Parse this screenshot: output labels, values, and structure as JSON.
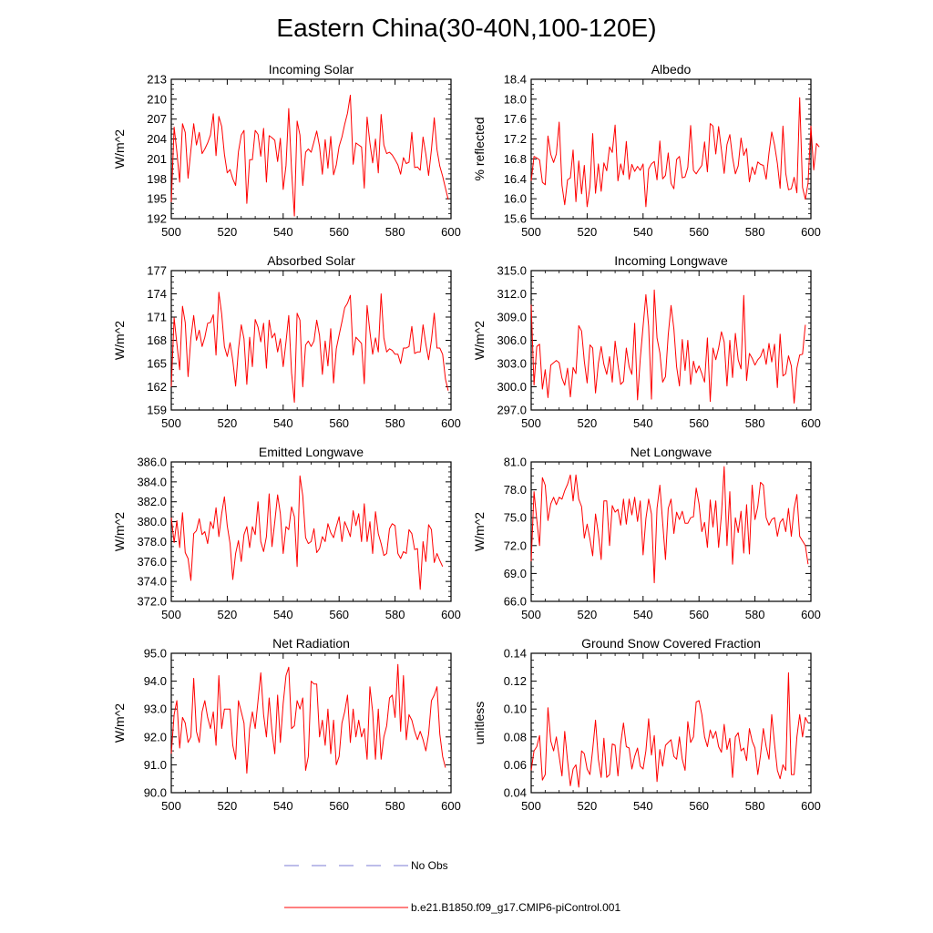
{
  "title": "Eastern China(30-40N,100-120E)",
  "legend": [
    {
      "label": "No Obs",
      "color": "#7b7bd6",
      "dash": true
    },
    {
      "label": "b.e21.B1850.f09_g17.CMIP6-piControl.001",
      "color": "#ff0000",
      "dash": false
    }
  ],
  "chart_data": [
    {
      "type": "line",
      "title": "Incoming Solar",
      "ylabel": "W/m^2",
      "xlim": [
        500,
        600
      ],
      "xticks": [
        500,
        520,
        540,
        560,
        580,
        600
      ],
      "ylim": [
        192,
        213
      ],
      "yticks": [
        "192",
        "195",
        "198",
        "201",
        "204",
        "207",
        "210",
        "213"
      ],
      "color": "#ff0000",
      "x_start": 500,
      "values": [
        194.5,
        205.8,
        202.1,
        197.5,
        206.3,
        205.0,
        198.1,
        202.3,
        206.3,
        203.1,
        205.0,
        201.8,
        202.5,
        203.4,
        204.6,
        207.8,
        201.5,
        207.4,
        205.9,
        201.7,
        198.9,
        199.4,
        198.0,
        197.0,
        202.1,
        204.6,
        205.3,
        194.3,
        200.9,
        200.9,
        205.3,
        204.7,
        201.4,
        205.6,
        197.5,
        204.5,
        204.2,
        203.8,
        200.6,
        204.1,
        196.4,
        200.0,
        208.6,
        199.3,
        192.4,
        206.7,
        204.6,
        197.0,
        202.0,
        202.5,
        202.0,
        203.6,
        205.2,
        202.9,
        198.7,
        203.9,
        199.6,
        204.4,
        198.6,
        200.1,
        202.9,
        204.3,
        206.2,
        207.9,
        210.6,
        200.2,
        203.4,
        203.1,
        202.8,
        196.6,
        207.3,
        203.4,
        200.4,
        204.0,
        198.9,
        207.7,
        203.1,
        201.8,
        202.0,
        201.6,
        200.9,
        200.1,
        198.7,
        201.2,
        200.3,
        200.5,
        205.0,
        199.7,
        199.8,
        199.3,
        204.3,
        201.7,
        198.5,
        202.4,
        207.2,
        202.4,
        199.9,
        198.4,
        196.6,
        194.9
      ]
    },
    {
      "type": "line",
      "title": "Albedo",
      "ylabel": "% reflected",
      "xlim": [
        500,
        600
      ],
      "xticks": [
        500,
        520,
        540,
        560,
        580,
        600
      ],
      "ylim": [
        15.6,
        18.4
      ],
      "yticks": [
        "15.6",
        "16.0",
        "16.4",
        "16.8",
        "17.2",
        "17.6",
        "18.0",
        "18.4"
      ],
      "color": "#ff0000",
      "x_start": 500,
      "values": [
        16.36,
        16.85,
        16.82,
        16.78,
        16.33,
        16.28,
        17.26,
        16.89,
        16.73,
        16.9,
        17.54,
        16.27,
        15.88,
        16.38,
        16.42,
        16.98,
        15.94,
        16.76,
        16.1,
        16.67,
        15.84,
        16.24,
        17.31,
        16.11,
        16.7,
        16.15,
        16.72,
        16.56,
        17.04,
        16.93,
        17.48,
        16.36,
        16.7,
        16.48,
        17.15,
        16.39,
        16.69,
        16.55,
        16.65,
        16.57,
        16.7,
        15.84,
        16.6,
        16.7,
        16.75,
        16.38,
        17.16,
        16.4,
        16.47,
        16.92,
        16.31,
        16.2,
        16.79,
        16.85,
        16.42,
        16.44,
        16.63,
        17.47,
        16.57,
        16.5,
        16.59,
        16.67,
        17.14,
        16.54,
        17.51,
        17.46,
        16.9,
        17.45,
        16.98,
        16.51,
        17.09,
        17.29,
        16.83,
        16.5,
        16.66,
        17.22,
        16.87,
        17.01,
        16.34,
        16.64,
        16.49,
        16.74,
        16.69,
        16.67,
        16.39,
        16.92,
        17.34,
        17.08,
        16.71,
        16.21,
        17.46,
        16.51,
        16.18,
        16.2,
        16.43,
        16.12,
        18.03,
        16.23,
        15.99,
        16.32,
        17.46,
        16.58,
        17.11,
        17.04
      ]
    },
    {
      "type": "line",
      "title": "Absorbed Solar",
      "ylabel": "W/m^2",
      "xlim": [
        500,
        600
      ],
      "xticks": [
        500,
        520,
        540,
        560,
        580,
        600
      ],
      "ylim": [
        159,
        177
      ],
      "yticks": [
        "159",
        "162",
        "165",
        "168",
        "171",
        "174",
        "177"
      ],
      "color": "#ff0000",
      "x_start": 500,
      "values": [
        162.0,
        170.9,
        167.6,
        164.2,
        172.4,
        170.3,
        163.3,
        168.3,
        171.2,
        168.0,
        169.3,
        167.2,
        168.4,
        170.2,
        170.3,
        171.3,
        166.1,
        174.2,
        171.4,
        167.2,
        165.9,
        167.7,
        165.4,
        162.1,
        166.8,
        170.0,
        168.2,
        162.3,
        168.4,
        164.6,
        170.7,
        169.7,
        167.8,
        170.2,
        164.4,
        170.6,
        168.3,
        168.9,
        166.5,
        168.2,
        164.6,
        167.8,
        171.2,
        163.8,
        160.0,
        171.5,
        170.6,
        162.0,
        167.4,
        167.9,
        167.2,
        167.9,
        170.6,
        168.6,
        163.6,
        167.9,
        164.7,
        169.5,
        162.5,
        166.9,
        168.7,
        170.4,
        172.2,
        172.8,
        173.8,
        166.1,
        168.4,
        168.0,
        167.6,
        162.4,
        172.5,
        169.1,
        166.2,
        168.3,
        166.5,
        174.0,
        168.3,
        166.5,
        166.9,
        166.7,
        166.2,
        166.2,
        165.0,
        167.0,
        167.0,
        167.2,
        169.8,
        166.3,
        166.5,
        166.5,
        170.0,
        167.5,
        165.5,
        168.0,
        171.5,
        167.0,
        167.0,
        166.2,
        163.0,
        161.5
      ]
    },
    {
      "type": "line",
      "title": "Incoming Longwave",
      "ylabel": "W/m^2",
      "xlim": [
        500,
        600
      ],
      "xticks": [
        500,
        520,
        540,
        560,
        580,
        600
      ],
      "ylim": [
        297,
        315
      ],
      "yticks": [
        "297.0",
        "300.0",
        "303.0",
        "306.0",
        "309.0",
        "312.0",
        "315.0"
      ],
      "color": "#ff0000",
      "x_start": 500,
      "values": [
        310.6,
        300.2,
        305.2,
        305.5,
        299.7,
        302.2,
        298.6,
        302.8,
        303.1,
        303.4,
        303.1,
        301.1,
        300.2,
        302.4,
        298.7,
        302.5,
        301.7,
        307.9,
        307.2,
        303.3,
        300.5,
        305.4,
        305.0,
        299.2,
        303.0,
        305.2,
        302.9,
        301.6,
        303.9,
        300.6,
        305.9,
        302.9,
        300.3,
        300.7,
        305.0,
        302.6,
        301.6,
        308.2,
        298.3,
        303.6,
        307.8,
        311.9,
        307.8,
        298.4,
        312.5,
        306.3,
        304.4,
        300.6,
        301.3,
        306.7,
        310.5,
        307.5,
        302.6,
        300.1,
        306.1,
        302.1,
        306.0,
        300.3,
        303.3,
        301.8,
        302.7,
        301.7,
        300.6,
        306.3,
        298.1,
        305.0,
        303.5,
        305.0,
        307.1,
        305.8,
        300.1,
        306.0,
        301.2,
        306.9,
        303.5,
        302.3,
        311.8,
        300.8,
        304.3,
        303.7,
        302.8,
        303.5,
        303.9,
        304.9,
        302.9,
        305.6,
        303.2,
        305.5,
        299.9,
        306.8,
        301.4,
        301.7,
        304.0,
        302.7,
        297.9,
        302.4,
        304.1,
        304.2,
        308.0
      ]
    },
    {
      "type": "line",
      "title": "Emitted Longwave",
      "ylabel": "W/m^2",
      "xlim": [
        500,
        600
      ],
      "xticks": [
        500,
        520,
        540,
        560,
        580,
        600
      ],
      "ylim": [
        372,
        386
      ],
      "yticks": [
        "372.0",
        "374.0",
        "376.0",
        "378.0",
        "380.0",
        "382.0",
        "384.0",
        "386.0"
      ],
      "color": "#ff0000",
      "x_start": 500,
      "values": [
        380.4,
        377.9,
        380.1,
        377.4,
        380.9,
        376.9,
        376.3,
        374.1,
        378.8,
        379.1,
        380.3,
        378.7,
        379.0,
        377.8,
        380.0,
        379.3,
        381.4,
        378.5,
        380.8,
        382.5,
        379.6,
        377.8,
        374.2,
        376.8,
        378.1,
        376.0,
        378.7,
        379.5,
        377.4,
        379.5,
        378.7,
        382.0,
        378.0,
        377.0,
        378.5,
        382.8,
        377.5,
        380.0,
        382.7,
        380.8,
        376.8,
        379.5,
        379.2,
        381.5,
        380.5,
        375.5,
        384.6,
        382.6,
        378.4,
        377.8,
        378.0,
        379.3,
        376.9,
        377.3,
        378.5,
        378.0,
        379.8,
        378.9,
        378.4,
        379.5,
        380.5,
        378.0,
        380.0,
        379.3,
        378.5,
        381.1,
        379.6,
        380.8,
        378.0,
        381.8,
        378.0,
        380.0,
        376.8,
        381.0,
        378.8,
        377.8,
        376.6,
        376.8,
        379.3,
        379.8,
        379.6,
        376.8,
        376.3,
        377.0,
        376.8,
        379.2,
        378.8,
        377.2,
        377.3,
        373.2,
        378.0,
        376.0,
        379.7,
        379.2,
        375.9,
        376.8,
        376.1,
        375.5
      ]
    },
    {
      "type": "line",
      "title": "Net Longwave",
      "ylabel": "W/m^2",
      "xlim": [
        500,
        600
      ],
      "xticks": [
        500,
        520,
        540,
        560,
        580,
        600
      ],
      "ylim": [
        66,
        81
      ],
      "yticks": [
        "66.0",
        "69.0",
        "72.0",
        "75.0",
        "78.0",
        "81.0"
      ],
      "color": "#ff0000",
      "x_start": 500,
      "values": [
        70.3,
        77.8,
        74.8,
        72.0,
        79.3,
        78.5,
        74.7,
        76.5,
        77.2,
        76.4,
        77.2,
        77.0,
        77.9,
        78.6,
        79.6,
        76.8,
        79.6,
        77.0,
        76.2,
        72.8,
        74.3,
        72.7,
        70.9,
        75.4,
        73.3,
        70.5,
        76.8,
        76.8,
        72.0,
        76.3,
        75.6,
        75.9,
        74.2,
        77.0,
        74.3,
        77.0,
        75.3,
        77.2,
        74.6,
        76.8,
        71.0,
        74.9,
        77.0,
        75.4,
        68.0,
        76.0,
        78.5,
        74.5,
        70.5,
        76.0,
        77.0,
        73.3,
        75.6,
        74.8,
        75.7,
        74.4,
        74.4,
        75.0,
        75.1,
        78.2,
        76.5,
        73.5,
        74.5,
        71.8,
        76.9,
        74.0,
        76.8,
        71.8,
        75.3,
        80.5,
        72.0,
        77.8,
        70.0,
        75.0,
        73.4,
        75.7,
        71.2,
        76.4,
        71.1,
        78.5,
        74.8,
        76.2,
        78.8,
        78.5,
        75.0,
        74.2,
        74.8,
        75.0,
        73.0,
        74.5,
        74.9,
        73.5,
        76.0,
        73.0,
        76.0,
        77.5,
        73.0,
        72.5,
        72.0,
        70.0
      ]
    },
    {
      "type": "line",
      "title": "Net Radiation",
      "ylabel": "W/m^2",
      "xlim": [
        500,
        600
      ],
      "xticks": [
        500,
        520,
        540,
        560,
        580,
        600
      ],
      "ylim": [
        90,
        95
      ],
      "yticks": [
        "90.0",
        "91.0",
        "92.0",
        "93.0",
        "94.0",
        "95.0"
      ],
      "color": "#ff0000",
      "x_start": 500,
      "values": [
        91.4,
        92.8,
        93.3,
        91.6,
        92.7,
        92.5,
        91.8,
        92.0,
        94.1,
        92.2,
        91.8,
        92.9,
        93.3,
        92.7,
        92.3,
        92.9,
        91.7,
        94.2,
        92.3,
        93.0,
        93.0,
        93.0,
        91.7,
        91.2,
        93.3,
        92.9,
        92.5,
        90.7,
        92.3,
        92.9,
        92.3,
        93.3,
        94.3,
        92.8,
        92.0,
        93.4,
        92.2,
        91.4,
        93.5,
        91.8,
        93.2,
        94.2,
        94.5,
        92.3,
        92.4,
        93.3,
        93.0,
        93.4,
        90.8,
        91.3,
        94.0,
        93.9,
        93.9,
        92.0,
        92.6,
        91.7,
        93.0,
        91.4,
        92.6,
        91.0,
        91.3,
        92.5,
        92.9,
        93.5,
        91.8,
        93.0,
        92.0,
        92.6,
        92.0,
        92.3,
        91.2,
        93.8,
        92.9,
        91.2,
        93.0,
        91.2,
        92.0,
        92.4,
        93.4,
        93.5,
        92.7,
        94.6,
        92.2,
        94.2,
        91.9,
        92.8,
        92.6,
        92.2,
        91.9,
        92.2,
        91.9,
        91.5,
        92.1,
        93.3,
        93.5,
        93.8,
        92.1,
        91.3,
        90.9
      ]
    },
    {
      "type": "line",
      "title": "Ground Snow Covered Fraction",
      "ylabel": "unitless",
      "xlim": [
        500,
        600
      ],
      "xticks": [
        500,
        520,
        540,
        560,
        580,
        600
      ],
      "ylim": [
        0.04,
        0.14
      ],
      "yticks": [
        "0.04",
        "0.06",
        "0.08",
        "0.10",
        "0.12",
        "0.14"
      ],
      "color": "#ff0000",
      "x_start": 500,
      "values": [
        0.056,
        0.07,
        0.073,
        0.081,
        0.049,
        0.053,
        0.101,
        0.077,
        0.07,
        0.08,
        0.066,
        0.052,
        0.084,
        0.063,
        0.045,
        0.057,
        0.06,
        0.044,
        0.07,
        0.068,
        0.057,
        0.053,
        0.071,
        0.092,
        0.064,
        0.051,
        0.079,
        0.051,
        0.053,
        0.075,
        0.074,
        0.052,
        0.075,
        0.09,
        0.073,
        0.072,
        0.057,
        0.066,
        0.072,
        0.059,
        0.057,
        0.07,
        0.093,
        0.067,
        0.081,
        0.048,
        0.071,
        0.059,
        0.074,
        0.076,
        0.078,
        0.066,
        0.064,
        0.08,
        0.064,
        0.056,
        0.091,
        0.076,
        0.08,
        0.105,
        0.106,
        0.096,
        0.08,
        0.073,
        0.085,
        0.079,
        0.084,
        0.073,
        0.069,
        0.089,
        0.071,
        0.079,
        0.051,
        0.08,
        0.083,
        0.07,
        0.072,
        0.063,
        0.086,
        0.077,
        0.072,
        0.053,
        0.067,
        0.086,
        0.073,
        0.064,
        0.096,
        0.075,
        0.056,
        0.05,
        0.06,
        0.056,
        0.126,
        0.053,
        0.053,
        0.08,
        0.096,
        0.08,
        0.094,
        0.09
      ]
    }
  ]
}
